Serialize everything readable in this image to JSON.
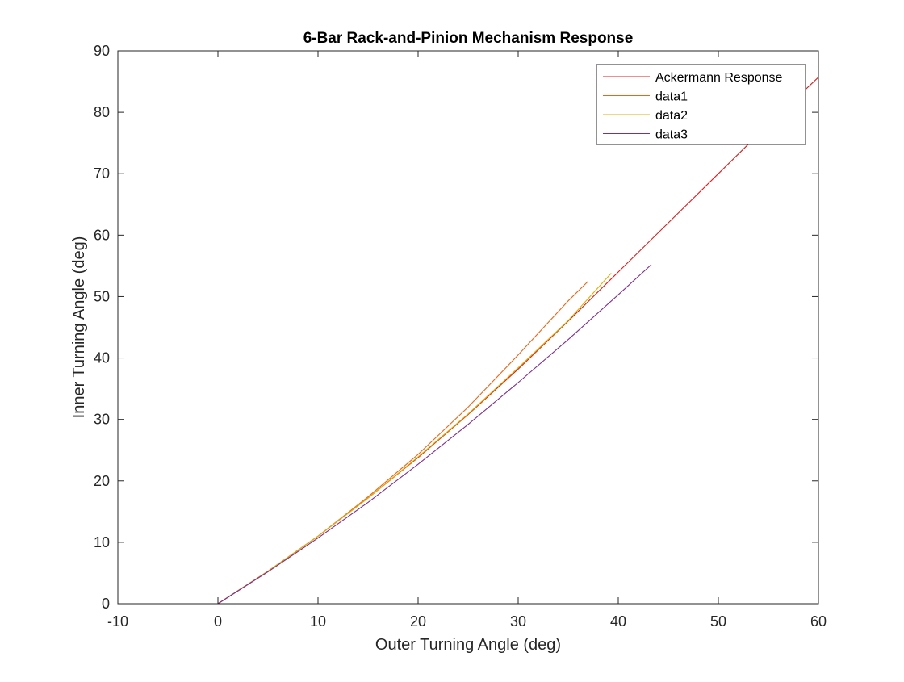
{
  "chart_data": {
    "type": "line",
    "title": "6-Bar Rack-and-Pinion Mechanism Response",
    "xlabel": "Outer Turning Angle (deg)",
    "ylabel": "Inner Turning Angle (deg)",
    "xlim": [
      -10,
      60
    ],
    "ylim": [
      0,
      90
    ],
    "xticks": [
      "-10",
      "0",
      "10",
      "20",
      "30",
      "40",
      "50",
      "60"
    ],
    "yticks": [
      "0",
      "10",
      "20",
      "30",
      "40",
      "50",
      "60",
      "70",
      "80",
      "90"
    ],
    "grid": false,
    "legend_position": "top-right",
    "series": [
      {
        "name": "Ackermann Response",
        "color": "#d62020",
        "x": [
          0,
          5,
          10,
          15,
          20,
          25,
          30,
          35,
          40,
          45,
          50,
          55,
          60
        ],
        "y": [
          0,
          5.3,
          11.0,
          17.2,
          23.8,
          30.8,
          38.2,
          46.0,
          54.0,
          62.0,
          70.0,
          78.0,
          85.7
        ]
      },
      {
        "name": "data1",
        "color": "#e8661a",
        "x": [
          0,
          5,
          10,
          15,
          20,
          25,
          30,
          35,
          37
        ],
        "y": [
          0,
          5.3,
          11.0,
          17.4,
          24.3,
          32.0,
          40.5,
          49.3,
          52.5
        ]
      },
      {
        "name": "data2",
        "color": "#e0b000",
        "x": [
          0,
          5,
          10,
          15,
          20,
          25,
          30,
          35,
          39.3
        ],
        "y": [
          0,
          5.3,
          11.0,
          17.2,
          23.9,
          30.9,
          38.4,
          46.1,
          53.8
        ]
      },
      {
        "name": "data3",
        "color": "#7e2f8e",
        "x": [
          0,
          5,
          10,
          15,
          20,
          25,
          30,
          35,
          40,
          43.3
        ],
        "y": [
          0,
          5.2,
          10.7,
          16.5,
          22.7,
          29.2,
          36.0,
          43.0,
          50.3,
          55.2
        ]
      }
    ]
  }
}
